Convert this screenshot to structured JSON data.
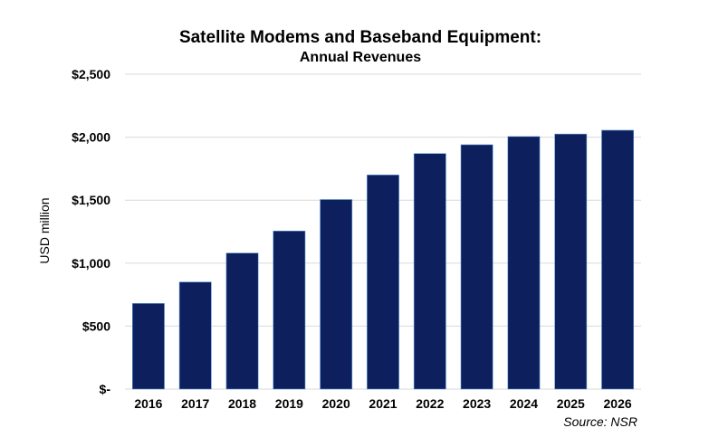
{
  "chart_data": {
    "type": "bar",
    "title": "Satellite Modems and Baseband Equipment:",
    "subtitle": "Annual Revenues",
    "xlabel": "",
    "ylabel": "USD million",
    "categories": [
      "2016",
      "2017",
      "2018",
      "2019",
      "2020",
      "2021",
      "2022",
      "2023",
      "2024",
      "2025",
      "2026"
    ],
    "values": [
      680,
      850,
      1080,
      1255,
      1505,
      1700,
      1870,
      1940,
      2005,
      2025,
      2055
    ],
    "ylim": [
      0,
      2500
    ],
    "yticks": [
      0,
      500,
      1000,
      1500,
      2000,
      2500
    ],
    "ytick_labels": [
      "$-",
      "$500",
      "$1,000",
      "$1,500",
      "$2,000",
      "$2,500"
    ],
    "grid": true,
    "legend": "none",
    "source": "Source: NSR",
    "colors": {
      "bar": "#0d1f5c",
      "grid": "#d9d9d9"
    }
  }
}
